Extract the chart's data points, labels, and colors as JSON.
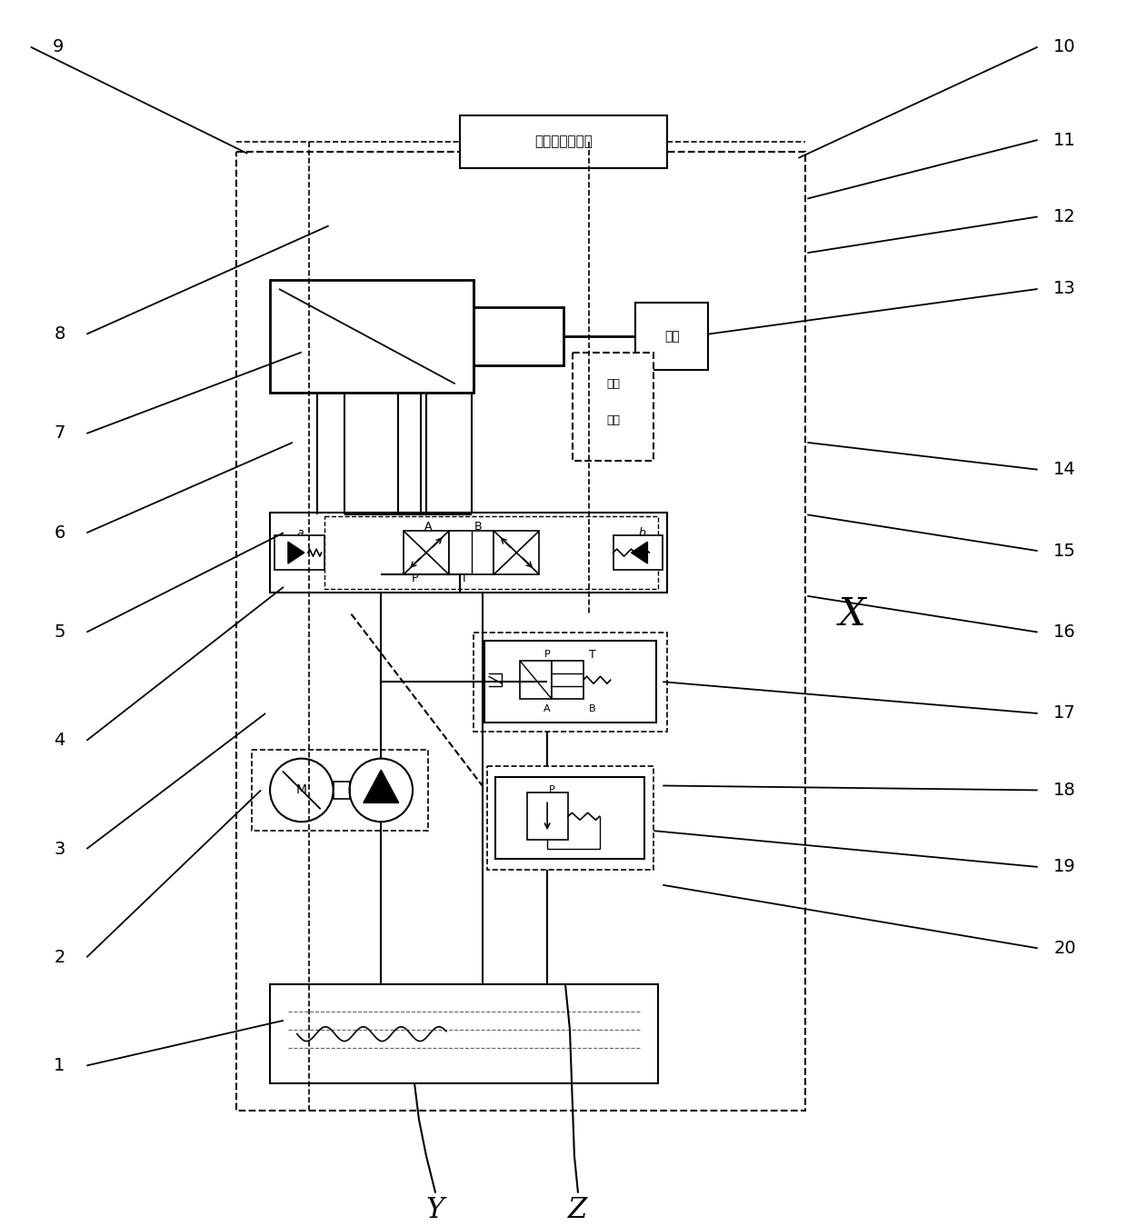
{
  "bg_color": "#ffffff",
  "line_color": "#000000",
  "figsize": [
    12.4,
    13.49
  ],
  "dpi": 100,
  "control_box_text": "控制及驱动系统",
  "load_text": "负载",
  "detect_text_1": "检测",
  "detect_text_2": "装置"
}
